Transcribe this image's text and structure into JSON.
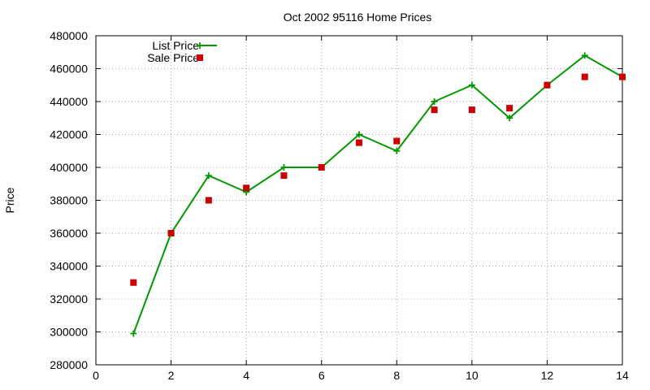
{
  "chart_data": {
    "type": "line",
    "title": "Oct 2002 95116 Home Prices",
    "xlabel": "",
    "ylabel": "Price",
    "xlim": [
      0,
      14
    ],
    "ylim": [
      280000,
      480000
    ],
    "xticks": [
      0,
      2,
      4,
      6,
      8,
      10,
      12,
      14
    ],
    "yticks": [
      280000,
      300000,
      320000,
      340000,
      360000,
      380000,
      400000,
      420000,
      440000,
      460000,
      480000
    ],
    "grid": true,
    "legend_position": "top-left",
    "series": [
      {
        "name": "List Price",
        "style": "line-points",
        "marker": "plus",
        "color": "#009900",
        "x": [
          1,
          2,
          3,
          4,
          5,
          6,
          7,
          8,
          9,
          10,
          11,
          12,
          13,
          14
        ],
        "y": [
          299000,
          360000,
          395000,
          385000,
          400000,
          400000,
          420000,
          410000,
          440000,
          450000,
          430000,
          450000,
          468000,
          455000
        ]
      },
      {
        "name": "Sale Price",
        "style": "points",
        "marker": "square",
        "color": "#cc0000",
        "x": [
          1,
          2,
          3,
          4,
          5,
          6,
          7,
          8,
          9,
          10,
          11,
          12,
          13,
          14
        ],
        "y": [
          330000,
          360000,
          380000,
          387500,
          395000,
          400000,
          415000,
          416000,
          435000,
          435000,
          436000,
          450000,
          455000,
          455000
        ]
      }
    ]
  }
}
